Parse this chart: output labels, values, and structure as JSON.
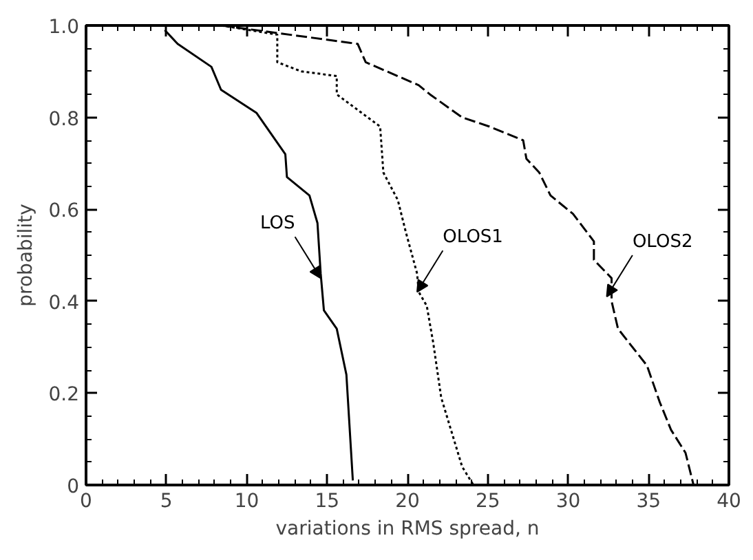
{
  "chart_data": {
    "type": "line",
    "xlabel": "variations in RMS spread, n",
    "ylabel": "probability",
    "xlim": [
      0,
      40
    ],
    "ylim": [
      0,
      1.0
    ],
    "xticks": [
      0,
      {
        "value": 1,
        "label": null
      },
      {
        "value": 2,
        "label": null
      },
      {
        "value": 3,
        "label": null
      },
      {
        "value": 4,
        "label": null
      },
      5,
      {
        "value": 6,
        "label": null
      },
      {
        "value": 7,
        "label": null
      },
      {
        "value": 8,
        "label": null
      },
      {
        "value": 9,
        "label": null
      },
      10,
      {
        "value": 11,
        "label": null
      },
      {
        "value": 12,
        "label": null
      },
      {
        "value": 13,
        "label": null
      },
      {
        "value": 14,
        "label": null
      },
      15,
      {
        "value": 16,
        "label": null
      },
      {
        "value": 17,
        "label": null
      },
      {
        "value": 18,
        "label": null
      },
      {
        "value": 19,
        "label": null
      },
      20,
      {
        "value": 21,
        "label": null
      },
      {
        "value": 22,
        "label": null
      },
      {
        "value": 23,
        "label": null
      },
      {
        "value": 24,
        "label": null
      },
      25,
      {
        "value": 26,
        "label": null
      },
      {
        "value": 27,
        "label": null
      },
      {
        "value": 28,
        "label": null
      },
      {
        "value": 29,
        "label": null
      },
      30,
      {
        "value": 31,
        "label": null
      },
      {
        "value": 32,
        "label": null
      },
      {
        "value": 33,
        "label": null
      },
      {
        "value": 34,
        "label": null
      },
      35,
      {
        "value": 36,
        "label": null
      },
      {
        "value": 37,
        "label": null
      },
      {
        "value": 38,
        "label": null
      },
      {
        "value": 39,
        "label": null
      },
      40
    ],
    "yticks": [
      0,
      {
        "value": 0.05,
        "label": null
      },
      {
        "value": 0.1,
        "label": null
      },
      {
        "value": 0.15,
        "label": null
      },
      0.2,
      {
        "value": 0.25,
        "label": null
      },
      {
        "value": 0.3,
        "label": null
      },
      {
        "value": 0.35,
        "label": null
      },
      0.4,
      {
        "value": 0.45,
        "label": null
      },
      {
        "value": 0.5,
        "label": null
      },
      {
        "value": 0.55,
        "label": null
      },
      0.6,
      {
        "value": 0.65,
        "label": null
      },
      {
        "value": 0.7,
        "label": null
      },
      {
        "value": 0.75,
        "label": null
      },
      0.8,
      {
        "value": 0.85,
        "label": null
      },
      {
        "value": 0.9,
        "label": null
      },
      {
        "value": 0.95,
        "label": null
      },
      {
        "value": 1.0,
        "label": "1.0"
      }
    ],
    "series": [
      {
        "color": "#000000",
        "line_style": "solid",
        "x": [
          4.9,
          5.7,
          7.8,
          8.4,
          10.6,
          12.4,
          12.5,
          13.9,
          14.4,
          14.6,
          14.8,
          15.6,
          16.2,
          16.6
        ],
        "values": [
          0.99,
          0.96,
          0.91,
          0.86,
          0.81,
          0.72,
          0.67,
          0.63,
          0.57,
          0.46,
          0.38,
          0.34,
          0.24,
          0.01
        ]
      },
      {
        "color": "#000000",
        "line_style": "dotted",
        "x": [
          8.4,
          11.9,
          11.9,
          13.4,
          15.6,
          15.6,
          18.3,
          18.5,
          19.4,
          19.9,
          20.6,
          20.7,
          21.2,
          21.6,
          22.1,
          23.4,
          24.1
        ],
        "values": [
          1.0,
          0.98,
          0.92,
          0.9,
          0.89,
          0.85,
          0.78,
          0.68,
          0.62,
          0.55,
          0.46,
          0.42,
          0.39,
          0.31,
          0.19,
          0.04,
          0.0
        ]
      },
      {
        "color": "#000000",
        "line_style": "dashed",
        "x": [
          8.4,
          16.9,
          17.4,
          20.7,
          21.4,
          23.4,
          25.1,
          27.2,
          27.4,
          28.2,
          28.9,
          30.3,
          31.6,
          31.6,
          32.7,
          32.7,
          33.1,
          34.9,
          35.7,
          36.4,
          37.3,
          37.8
        ],
        "values": [
          1.0,
          0.96,
          0.92,
          0.87,
          0.85,
          0.8,
          0.78,
          0.75,
          0.71,
          0.68,
          0.63,
          0.59,
          0.53,
          0.49,
          0.45,
          0.4,
          0.34,
          0.26,
          0.18,
          0.12,
          0.07,
          0.0
        ]
      }
    ],
    "annotations": [
      {
        "text": "LOS",
        "x": 14.6,
        "y": 0.45
      },
      {
        "text": "OLOS1",
        "x": 20.6,
        "y": 0.42
      },
      {
        "text": "OLOS2",
        "x": 32.4,
        "y": 0.41
      }
    ]
  }
}
